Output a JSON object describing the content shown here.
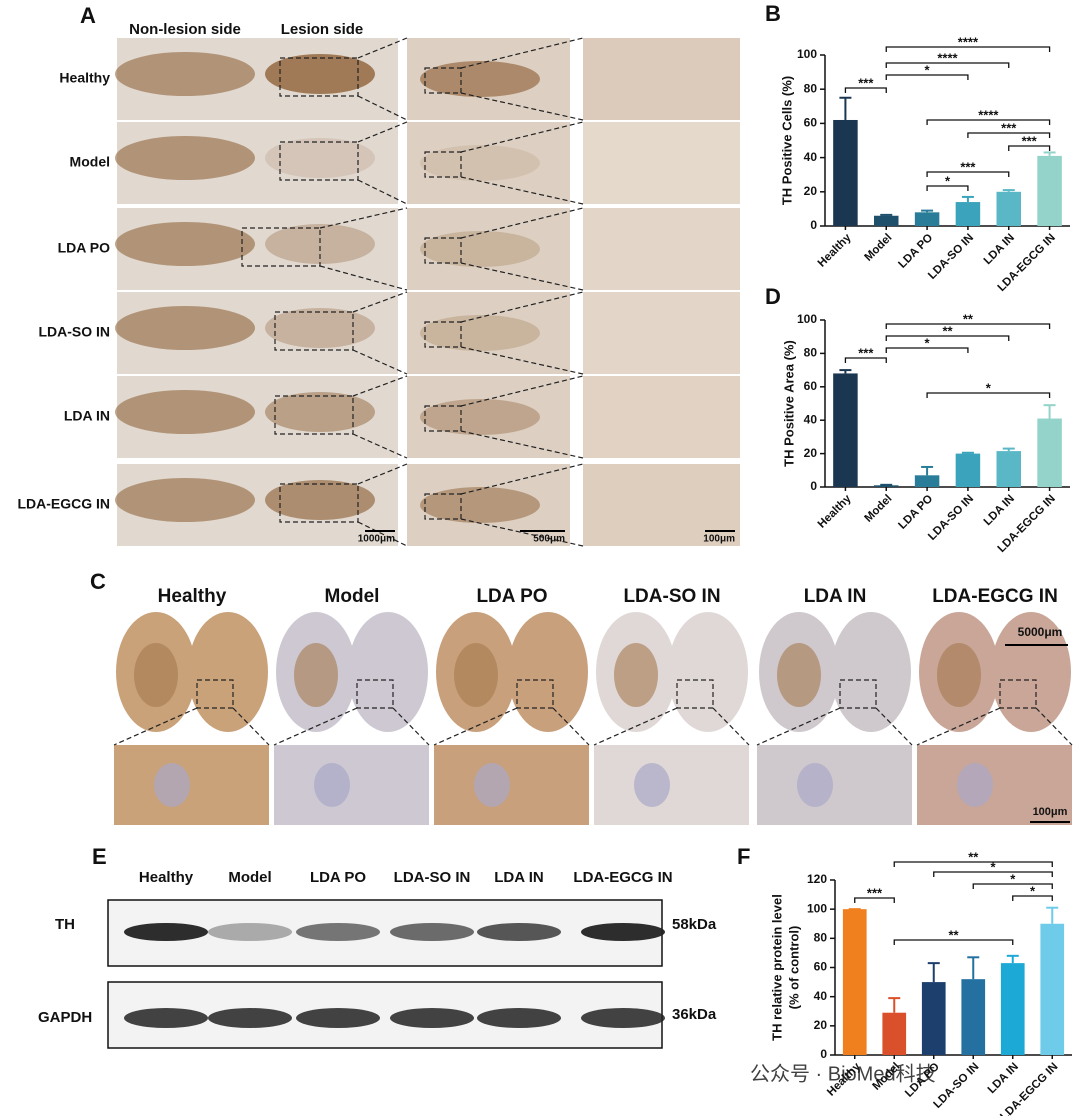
{
  "panels": {
    "A": {
      "letter": "A",
      "columns": [
        "Non-lesion side",
        "Lesion side"
      ],
      "rows": [
        "Healthy",
        "Model",
        "LDA PO",
        "LDA-SO IN",
        "LDA IN",
        "LDA-EGCG IN"
      ],
      "scale_bars": [
        "1000μm",
        "500μm",
        "100μm"
      ]
    },
    "C": {
      "letter": "C",
      "groups": [
        "Healthy",
        "Model",
        "LDA PO",
        "LDA-SO IN",
        "LDA IN",
        "LDA-EGCG IN"
      ],
      "scale_bars": [
        "5000μm",
        "100μm"
      ]
    },
    "E": {
      "letter": "E",
      "groups": [
        "Healthy",
        "Model",
        "LDA PO",
        "LDA-SO IN",
        "LDA IN",
        "LDA-EGCG IN"
      ],
      "rows": [
        "TH",
        "GAPDH"
      ],
      "sizes": [
        "58kDa",
        "36kDa"
      ]
    }
  },
  "chart_data": [
    {
      "type": "bar",
      "panel": "B",
      "ylabel": [
        "TH Positive Cells (%)"
      ],
      "categories": [
        "Healthy",
        "Model",
        "LDA PO",
        "LDA-SO IN",
        "LDA IN",
        "LDA-EGCG IN"
      ],
      "values": [
        62,
        6,
        8,
        14,
        20,
        41
      ],
      "errors": [
        13,
        0.5,
        1,
        3,
        1,
        2
      ],
      "colors": [
        "#1b3650",
        "#1e4f6b",
        "#2a7d98",
        "#3ba3bb",
        "#5ab8c6",
        "#93d3c9"
      ],
      "ylim": [
        0,
        100
      ],
      "yticks": [
        0,
        20,
        40,
        60,
        80,
        100
      ],
      "annotations": [
        {
          "label": "***",
          "from": 0,
          "to": 1
        },
        {
          "label": "****",
          "from": 1,
          "to": 5
        },
        {
          "label": "****",
          "from": 1,
          "to": 4
        },
        {
          "label": "*",
          "from": 1,
          "to": 3
        },
        {
          "label": "****",
          "from": 2,
          "to": 5
        },
        {
          "label": "***",
          "from": 3,
          "to": 5
        },
        {
          "label": "***",
          "from": 4,
          "to": 5
        },
        {
          "label": "***",
          "from": 2,
          "to": 4
        },
        {
          "label": "*",
          "from": 2,
          "to": 3
        }
      ]
    },
    {
      "type": "bar",
      "panel": "D",
      "ylabel": [
        "TH Positive Area (%)"
      ],
      "categories": [
        "Healthy",
        "Model",
        "LDA PO",
        "LDA-SO IN",
        "LDA IN",
        "LDA-EGCG IN"
      ],
      "values": [
        68,
        1,
        7,
        20,
        21.5,
        41
      ],
      "errors": [
        2,
        0.3,
        5,
        0.5,
        1.5,
        8
      ],
      "colors": [
        "#1b3650",
        "#1e4f6b",
        "#2a7d98",
        "#3ba3bb",
        "#5ab8c6",
        "#93d3c9"
      ],
      "ylim": [
        0,
        100
      ],
      "yticks": [
        0,
        20,
        40,
        60,
        80,
        100
      ],
      "annotations": [
        {
          "label": "***",
          "from": 0,
          "to": 1
        },
        {
          "label": "**",
          "from": 1,
          "to": 5
        },
        {
          "label": "**",
          "from": 1,
          "to": 4
        },
        {
          "label": "*",
          "from": 1,
          "to": 3
        },
        {
          "label": "*",
          "from": 2,
          "to": 5
        }
      ]
    },
    {
      "type": "bar",
      "panel": "F",
      "ylabel": [
        "TH relative protein level",
        "(% of control)"
      ],
      "categories": [
        "Healthy",
        "Model",
        "LDA PO",
        "LDA-SO IN",
        "LDA IN",
        "LDA-EGCG IN"
      ],
      "values": [
        100,
        29,
        50,
        52,
        63,
        90
      ],
      "errors": [
        0,
        10,
        13,
        15,
        5,
        11
      ],
      "colors": [
        "#f07f1e",
        "#d9502a",
        "#1d3f6e",
        "#2470a0",
        "#1ca9d6",
        "#6ecbea"
      ],
      "ylim": [
        0,
        120
      ],
      "yticks": [
        0,
        20,
        40,
        60,
        80,
        100,
        120
      ],
      "annotations": [
        {
          "label": "***",
          "from": 0,
          "to": 1
        },
        {
          "label": "**",
          "from": 1,
          "to": 5
        },
        {
          "label": "*",
          "from": 2,
          "to": 5
        },
        {
          "label": "*",
          "from": 3,
          "to": 5
        },
        {
          "label": "*",
          "from": 4,
          "to": 5
        },
        {
          "label": "**",
          "from": 1,
          "to": 4
        }
      ]
    }
  ],
  "watermark": "公众号 · BioMed科技"
}
